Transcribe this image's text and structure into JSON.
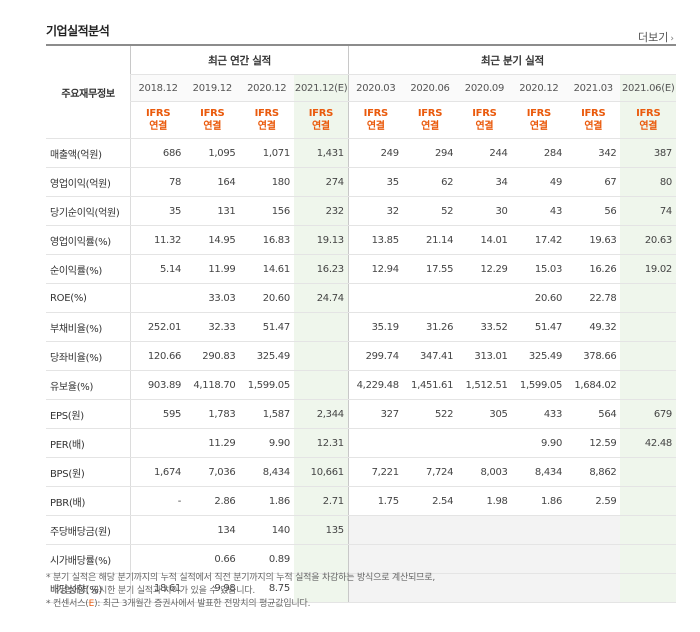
{
  "header": {
    "title": "기업실적분석",
    "more_label": "더보기"
  },
  "table": {
    "row_header": "주요재무정보",
    "groups": [
      "최근 연간 실적",
      "최근 분기 실적"
    ],
    "periods": [
      "2018.12",
      "2019.12",
      "2020.12",
      "2021.12(E)",
      "2020.03",
      "2020.06",
      "2020.09",
      "2020.12",
      "2021.03",
      "2021.06(E)"
    ],
    "ifrs_top": "IFRS",
    "ifrs_bottom": "연결",
    "rows": [
      {
        "label": "매출액(억원)",
        "values": [
          "686",
          "1,095",
          "1,071",
          "1,431",
          "249",
          "294",
          "244",
          "284",
          "342",
          "387"
        ]
      },
      {
        "label": "영업이익(억원)",
        "values": [
          "78",
          "164",
          "180",
          "274",
          "35",
          "62",
          "34",
          "49",
          "67",
          "80"
        ]
      },
      {
        "label": "당기순이익(억원)",
        "values": [
          "35",
          "131",
          "156",
          "232",
          "32",
          "52",
          "30",
          "43",
          "56",
          "74"
        ]
      },
      {
        "label": "영업이익률(%)",
        "values": [
          "11.32",
          "14.95",
          "16.83",
          "19.13",
          "13.85",
          "21.14",
          "14.01",
          "17.42",
          "19.63",
          "20.63"
        ]
      },
      {
        "label": "순이익률(%)",
        "values": [
          "5.14",
          "11.99",
          "14.61",
          "16.23",
          "12.94",
          "17.55",
          "12.29",
          "15.03",
          "16.26",
          "19.02"
        ]
      },
      {
        "label": "ROE(%)",
        "values": [
          "",
          "33.03",
          "20.60",
          "24.74",
          "",
          "",
          "",
          "20.60",
          "22.78",
          ""
        ]
      },
      {
        "label": "부채비율(%)",
        "values": [
          "252.01",
          "32.33",
          "51.47",
          "",
          "35.19",
          "31.26",
          "33.52",
          "51.47",
          "49.32",
          ""
        ]
      },
      {
        "label": "당좌비율(%)",
        "values": [
          "120.66",
          "290.83",
          "325.49",
          "",
          "299.74",
          "347.41",
          "313.01",
          "325.49",
          "378.66",
          ""
        ]
      },
      {
        "label": "유보율(%)",
        "values": [
          "903.89",
          "4,118.70",
          "1,599.05",
          "",
          "4,229.48",
          "1,451.61",
          "1,512.51",
          "1,599.05",
          "1,684.02",
          ""
        ]
      },
      {
        "label": "EPS(원)",
        "values": [
          "595",
          "1,783",
          "1,587",
          "2,344",
          "327",
          "522",
          "305",
          "433",
          "564",
          "679"
        ]
      },
      {
        "label": "PER(배)",
        "values": [
          "",
          "11.29",
          "9.90",
          "12.31",
          "",
          "",
          "",
          "9.90",
          "12.59",
          "42.48"
        ]
      },
      {
        "label": "BPS(원)",
        "values": [
          "1,674",
          "7,036",
          "8,434",
          "10,661",
          "7,221",
          "7,724",
          "8,003",
          "8,434",
          "8,862",
          ""
        ]
      },
      {
        "label": "PBR(배)",
        "values": [
          "-",
          "2.86",
          "1.86",
          "2.71",
          "1.75",
          "2.54",
          "1.98",
          "1.86",
          "2.59",
          ""
        ]
      },
      {
        "label": "주당배당금(원)",
        "values": [
          "",
          "134",
          "140",
          "135",
          "",
          "",
          "",
          "",
          "",
          ""
        ]
      },
      {
        "label": "시가배당률(%)",
        "values": [
          "",
          "0.66",
          "0.89",
          "",
          "",
          "",
          "",
          "",
          "",
          ""
        ]
      },
      {
        "label": "배당성향(%)",
        "values": [
          "18.61",
          "9.98",
          "8.75",
          "",
          "",
          "",
          "",
          "",
          "",
          ""
        ]
      }
    ]
  },
  "notes": {
    "line1": "* 분기 실적은 해당 분기까지의 누적 실적에서 직전 분기까지의 누적 실적을 차감하는 방식으로 계산되므로,",
    "line2": "기업에서 공시한 분기 실적과 차이가 있을 수 있습니다.",
    "line3_prefix": "* 컨센서스(",
    "line3_mark": "E",
    "line3_suffix": "): 최근 3개월간 증권사에서 발표한 전망치의 평균값입니다."
  }
}
